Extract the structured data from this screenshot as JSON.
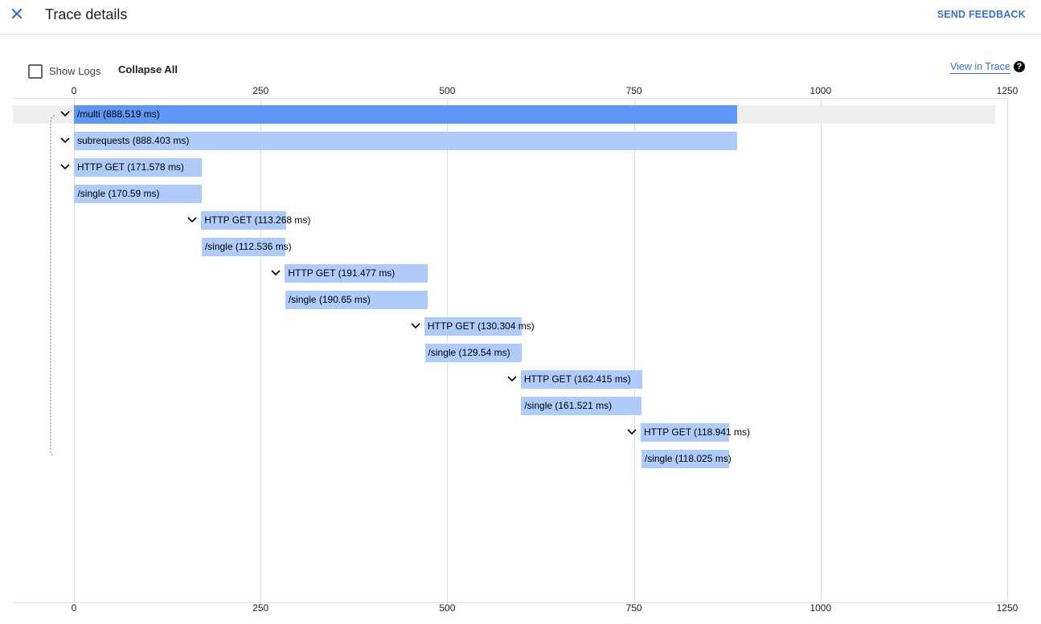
{
  "header": {
    "title": "Trace details",
    "feedback": "SEND FEEDBACK",
    "close_icon": "close-icon"
  },
  "toolbar": {
    "show_logs": "Show Logs",
    "show_logs_checked": false,
    "collapse_all": "Collapse All",
    "view_in_trace": "View in Trace",
    "help_icon": "help-icon"
  },
  "axis": {
    "ticks": [
      "0",
      "250",
      "500",
      "750",
      "1000",
      "1250"
    ],
    "tick_values": [
      0,
      250,
      500,
      750,
      1000,
      1250
    ],
    "max": 1250
  },
  "colors": {
    "root": "#5e97f6",
    "child": "#aecbfa",
    "link": "#3b6fd6"
  },
  "spans": [
    {
      "label": "/multi (888.519 ms)",
      "start": 0,
      "duration": 888.519,
      "expandable": true,
      "selected": true
    },
    {
      "label": "subrequests (888.403 ms)",
      "start": 0,
      "duration": 888.403,
      "expandable": true
    },
    {
      "label": "HTTP GET (171.578 ms)",
      "start": 0,
      "duration": 171.578,
      "expandable": true
    },
    {
      "label": "/single (170.59 ms)",
      "start": 0.5,
      "duration": 170.59,
      "expandable": false
    },
    {
      "label": "HTTP GET (113.268 ms)",
      "start": 170.5,
      "duration": 113.268,
      "expandable": true
    },
    {
      "label": "/single (112.536 ms)",
      "start": 171,
      "duration": 112.536,
      "expandable": false
    },
    {
      "label": "HTTP GET (191.477 ms)",
      "start": 282.5,
      "duration": 191.477,
      "expandable": true
    },
    {
      "label": "/single (190.65 ms)",
      "start": 283,
      "duration": 190.65,
      "expandable": false
    },
    {
      "label": "HTTP GET (130.304 ms)",
      "start": 469.3,
      "duration": 130.304,
      "expandable": true
    },
    {
      "label": "/single (129.54 ms)",
      "start": 470,
      "duration": 129.54,
      "expandable": false
    },
    {
      "label": "HTTP GET (162.415 ms)",
      "start": 598.5,
      "duration": 162.415,
      "expandable": true
    },
    {
      "label": "/single (161.521 ms)",
      "start": 599,
      "duration": 161.521,
      "expandable": false
    },
    {
      "label": "HTTP GET (118.941 ms)",
      "start": 759,
      "duration": 118.941,
      "expandable": true
    },
    {
      "label": "/single (118.025 ms)",
      "start": 760,
      "duration": 118.025,
      "expandable": false
    }
  ]
}
